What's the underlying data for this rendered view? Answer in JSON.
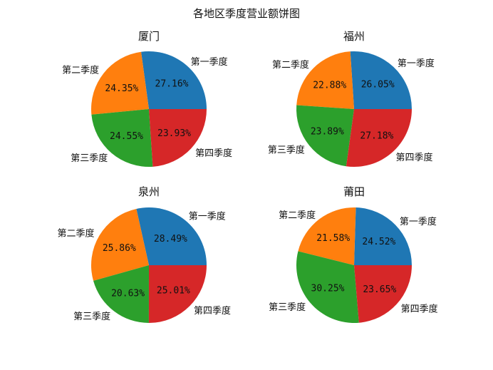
{
  "figure": {
    "title": "各地区季度营业额饼图"
  },
  "colors": [
    "#1f77b4",
    "#ff7f0e",
    "#2ca02c",
    "#d62728"
  ],
  "chart_data": [
    {
      "type": "pie",
      "title": "厦门",
      "labels": [
        "第一季度",
        "第二季度",
        "第三季度",
        "第四季度"
      ],
      "values": [
        27.16,
        24.35,
        24.55,
        23.93
      ],
      "value_labels": [
        "27.16%",
        "24.35%",
        "24.55%",
        "23.93%"
      ]
    },
    {
      "type": "pie",
      "title": "福州",
      "labels": [
        "第一季度",
        "第二季度",
        "第三季度",
        "第四季度"
      ],
      "values": [
        26.05,
        22.88,
        23.89,
        27.18
      ],
      "value_labels": [
        "26.05%",
        "22.88%",
        "23.89%",
        "27.18%"
      ]
    },
    {
      "type": "pie",
      "title": "泉州",
      "labels": [
        "第一季度",
        "第二季度",
        "第三季度",
        "第四季度"
      ],
      "values": [
        28.49,
        25.86,
        20.63,
        25.01
      ],
      "value_labels": [
        "28.49%",
        "25.86%",
        "20.63%",
        "25.01%"
      ]
    },
    {
      "type": "pie",
      "title": "莆田",
      "labels": [
        "第一季度",
        "第二季度",
        "第三季度",
        "第四季度"
      ],
      "values": [
        24.52,
        21.58,
        30.25,
        23.65
      ],
      "value_labels": [
        "24.52%",
        "21.58%",
        "30.25%",
        "23.65%"
      ]
    }
  ]
}
